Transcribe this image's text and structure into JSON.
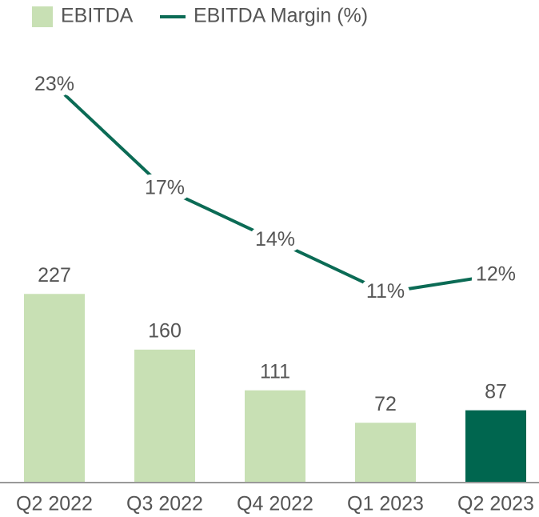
{
  "chart_data": {
    "type": "bar",
    "categories": [
      "Q2 2022",
      "Q3 2022",
      "Q4 2022",
      "Q1 2023",
      "Q2 2023"
    ],
    "series": [
      {
        "name": "EBITDA",
        "type": "bar",
        "color": "#c8e0b4",
        "colors": [
          "#c8e0b4",
          "#c8e0b4",
          "#c8e0b4",
          "#c8e0b4",
          "#00664f"
        ],
        "values": [
          227,
          160,
          111,
          72,
          87
        ]
      },
      {
        "name": "EBITDA Margin (%)",
        "type": "line",
        "axis": "y2",
        "color": "#0b6b55",
        "values": [
          23,
          17,
          14,
          11,
          12
        ],
        "value_labels": [
          "23%",
          "17%",
          "14%",
          "11%",
          "12%"
        ]
      }
    ],
    "ylim": [
      0,
      520
    ],
    "y2lim": [
      0,
      25
    ],
    "legend": "top-left"
  }
}
